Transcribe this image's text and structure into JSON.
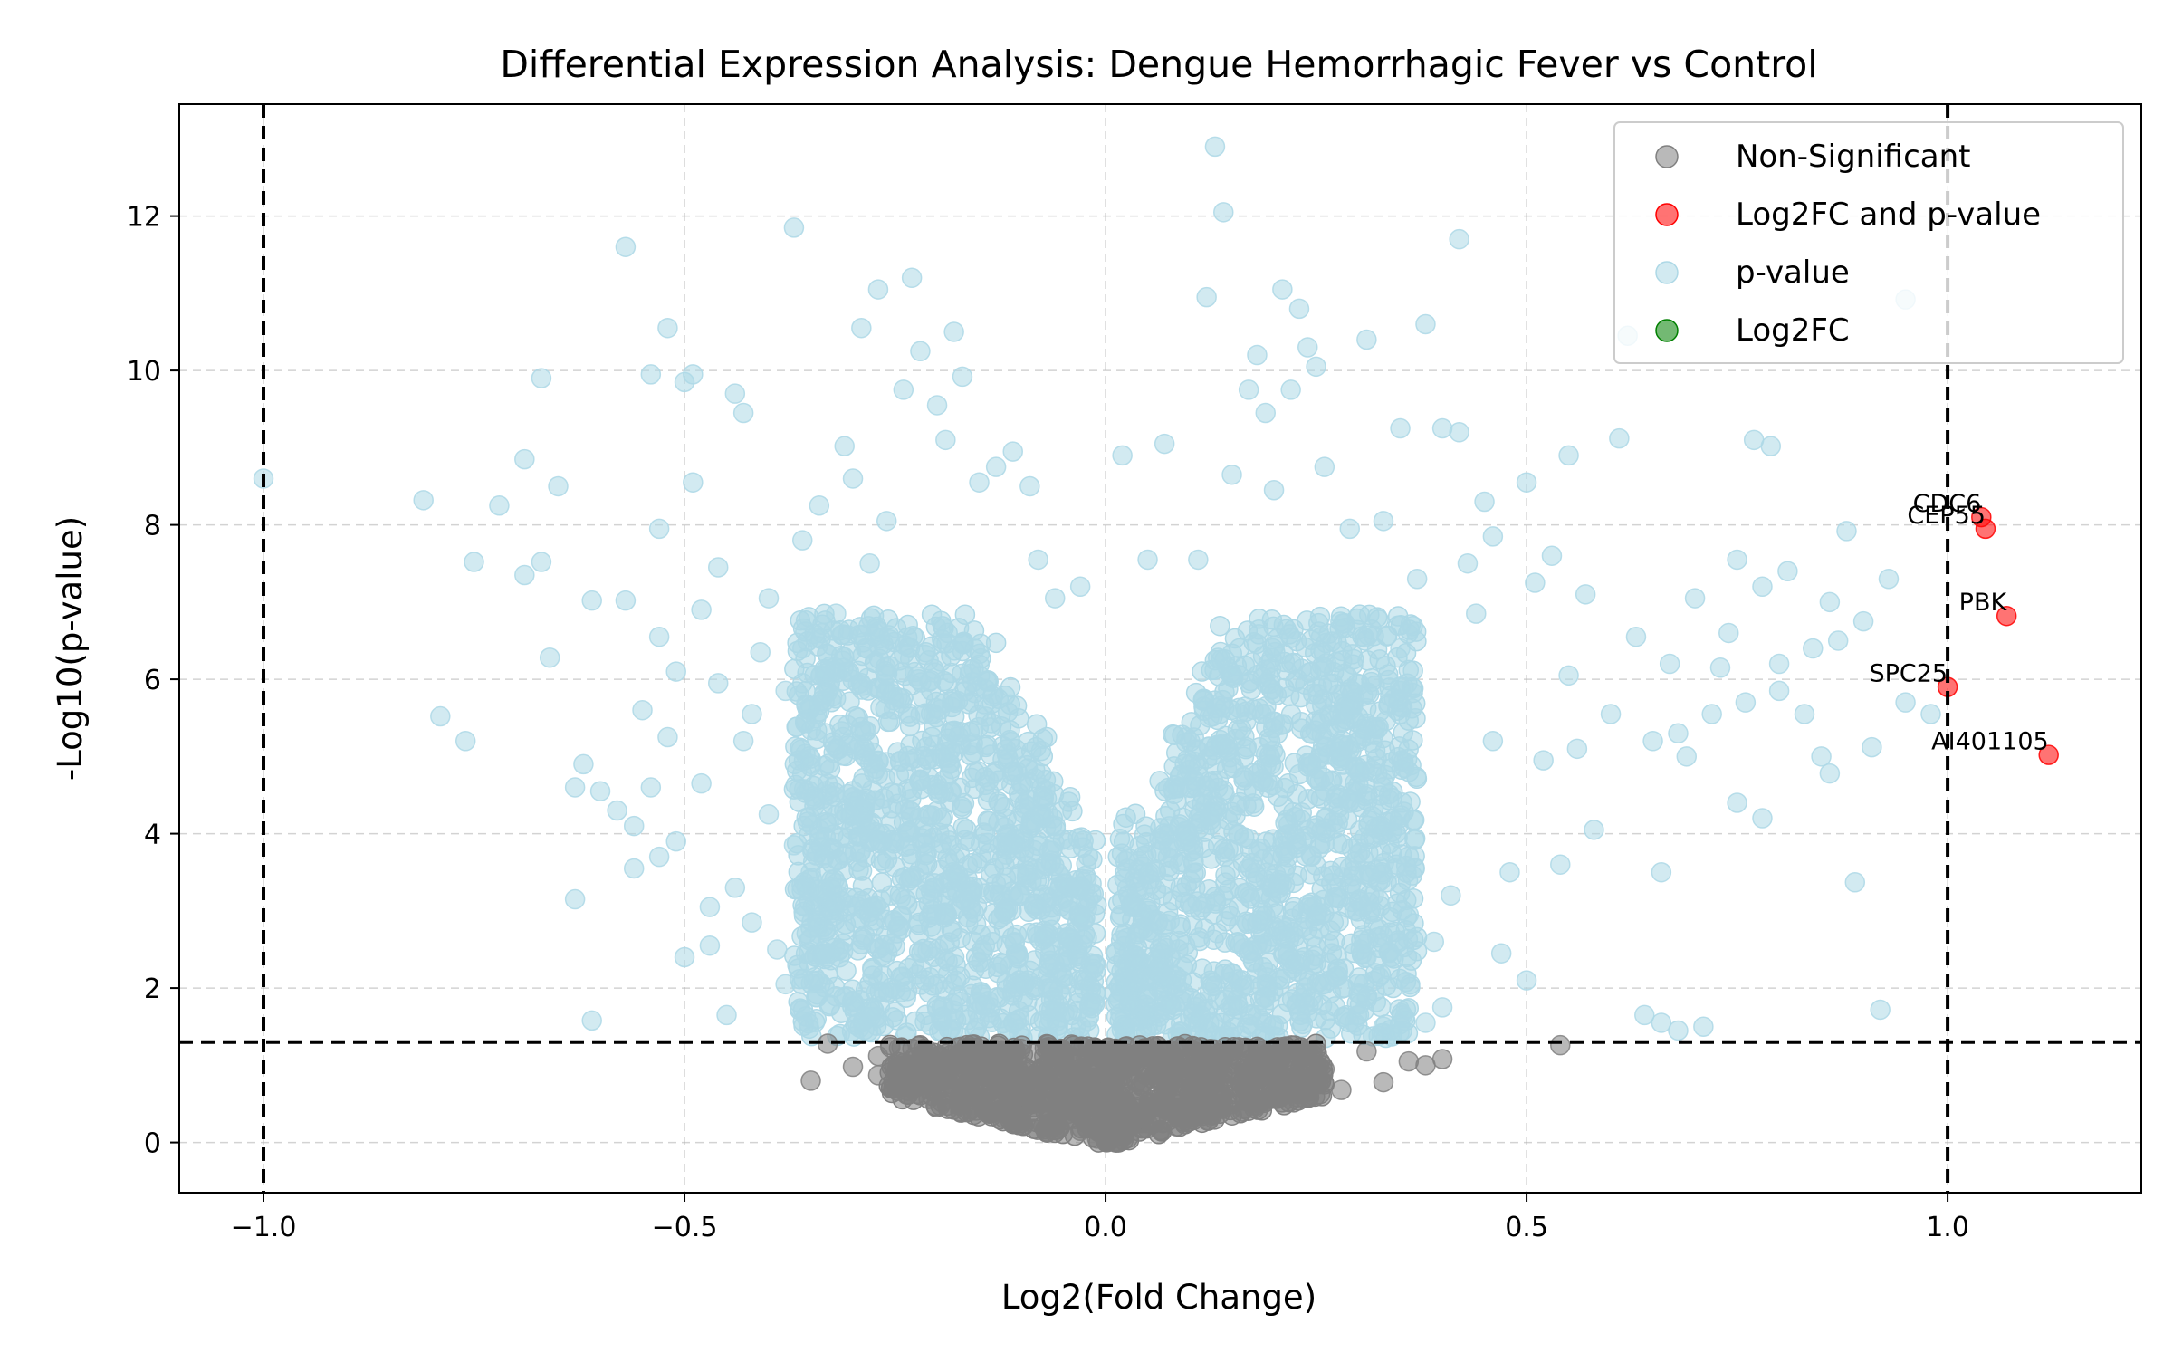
{
  "chart_data": {
    "type": "scatter",
    "title": "Differential Expression Analysis: Dengue Hemorrhagic Fever vs Control",
    "xlabel": "Log2(Fold Change)",
    "ylabel": "-Log10(p-value)",
    "xlim": [
      -1.1,
      1.23
    ],
    "ylim": [
      -0.65,
      13.45
    ],
    "x_ticks": [
      -1.0,
      -0.5,
      0.0,
      0.5,
      1.0
    ],
    "x_tick_labels": [
      "−1.0",
      "−0.5",
      "0.0",
      "0.5",
      "1.0"
    ],
    "y_ticks": [
      0,
      2,
      4,
      6,
      8,
      10,
      12
    ],
    "y_tick_labels": [
      "0",
      "2",
      "4",
      "6",
      "8",
      "10",
      "12"
    ],
    "grid": true,
    "legend_position": "top-right",
    "thresholds": {
      "log2fc": [
        -1.0,
        1.0
      ],
      "neg_log10_p": 1.3
    },
    "colors": {
      "non_significant": "#808080",
      "log2fc_and_pvalue": "#ff0000",
      "pvalue": "#add8e6",
      "log2fc": "#008000",
      "threshold_line": "#000000",
      "grid": "#b0b0b0"
    },
    "legend": [
      {
        "name": "Non-Significant",
        "color": "#808080"
      },
      {
        "name": "Log2FC and p-value",
        "color": "#ff0000"
      },
      {
        "name": "p-value",
        "color": "#add8e6"
      },
      {
        "name": "Log2FC",
        "color": "#008000"
      }
    ],
    "series": [
      {
        "name": "Non-Significant",
        "color": "#808080",
        "points": [
          [
            -0.33,
            1.28
          ],
          [
            -0.3,
            0.98
          ],
          [
            -0.27,
            0.87
          ],
          [
            -0.27,
            1.12
          ],
          [
            -0.24,
            0.95
          ],
          [
            -0.23,
            0.72
          ],
          [
            -0.22,
            1.05
          ],
          [
            -0.2,
            0.78
          ],
          [
            -0.18,
            0.62
          ],
          [
            -0.16,
            0.9
          ],
          [
            -0.15,
            0.55
          ],
          [
            -0.14,
            0.38
          ],
          [
            -0.12,
            0.7
          ],
          [
            -0.1,
            0.3
          ],
          [
            -0.09,
            0.52
          ],
          [
            -0.07,
            0.82
          ],
          [
            -0.06,
            0.22
          ],
          [
            -0.05,
            0.6
          ],
          [
            -0.03,
            0.15
          ],
          [
            -0.02,
            0.45
          ],
          [
            -0.01,
            0.05
          ],
          [
            0.0,
            0.68
          ],
          [
            0.01,
            0.12
          ],
          [
            0.03,
            0.4
          ],
          [
            0.05,
            0.25
          ],
          [
            0.06,
            0.88
          ],
          [
            0.08,
            0.52
          ],
          [
            0.1,
            0.35
          ],
          [
            0.12,
            0.75
          ],
          [
            0.14,
            0.48
          ],
          [
            0.15,
            1.02
          ],
          [
            0.17,
            0.62
          ],
          [
            0.19,
            0.85
          ],
          [
            0.21,
            0.7
          ],
          [
            0.23,
            1.1
          ],
          [
            0.24,
            0.8
          ],
          [
            0.26,
            0.95
          ],
          [
            0.28,
            0.68
          ],
          [
            0.31,
            1.18
          ],
          [
            0.33,
            0.78
          ],
          [
            0.36,
            1.05
          ],
          [
            0.4,
            1.08
          ],
          [
            0.54,
            1.26
          ],
          [
            -0.35,
            0.8
          ],
          [
            0.38,
            1.0
          ]
        ]
      },
      {
        "name": "Log2FC and p-value",
        "color": "#ff0000",
        "points": [
          [
            1.04,
            8.1
          ],
          [
            1.045,
            7.95
          ],
          [
            1.07,
            6.82
          ],
          [
            1.0,
            5.9
          ],
          [
            1.12,
            5.02
          ]
        ]
      },
      {
        "name": "p-value",
        "color": "#add8e6",
        "points": [
          [
            -1.0,
            8.6
          ],
          [
            -0.81,
            8.32
          ],
          [
            -0.79,
            5.52
          ],
          [
            -0.76,
            5.2
          ],
          [
            -0.75,
            7.52
          ],
          [
            -0.72,
            8.25
          ],
          [
            -0.69,
            8.85
          ],
          [
            -0.69,
            7.35
          ],
          [
            -0.67,
            7.52
          ],
          [
            -0.67,
            9.9
          ],
          [
            -0.66,
            6.28
          ],
          [
            -0.65,
            8.5
          ],
          [
            -0.63,
            3.15
          ],
          [
            -0.63,
            4.6
          ],
          [
            -0.62,
            4.9
          ],
          [
            -0.61,
            1.58
          ],
          [
            -0.61,
            7.02
          ],
          [
            -0.6,
            4.55
          ],
          [
            -0.58,
            4.3
          ],
          [
            -0.57,
            11.6
          ],
          [
            -0.57,
            7.02
          ],
          [
            -0.56,
            3.55
          ],
          [
            -0.56,
            4.1
          ],
          [
            -0.55,
            5.6
          ],
          [
            -0.54,
            9.95
          ],
          [
            -0.53,
            6.55
          ],
          [
            -0.53,
            7.95
          ],
          [
            -0.52,
            10.55
          ],
          [
            -0.51,
            3.9
          ],
          [
            -0.5,
            9.85
          ],
          [
            -0.49,
            8.55
          ],
          [
            -0.49,
            9.95
          ],
          [
            -0.48,
            6.9
          ],
          [
            -0.47,
            2.55
          ],
          [
            -0.46,
            7.45
          ],
          [
            -0.45,
            1.65
          ],
          [
            -0.44,
            9.7
          ],
          [
            -0.43,
            9.45
          ],
          [
            -0.43,
            5.2
          ],
          [
            -0.42,
            2.85
          ],
          [
            -0.4,
            7.05
          ],
          [
            -0.38,
            2.05
          ],
          [
            -0.37,
            11.85
          ],
          [
            -0.36,
            7.8
          ],
          [
            -0.35,
            3.5
          ],
          [
            -0.34,
            8.25
          ],
          [
            -0.32,
            6.85
          ],
          [
            -0.31,
            9.02
          ],
          [
            -0.3,
            8.6
          ],
          [
            -0.29,
            10.55
          ],
          [
            -0.28,
            7.5
          ],
          [
            -0.27,
            11.05
          ],
          [
            -0.26,
            8.05
          ],
          [
            -0.24,
            9.75
          ],
          [
            -0.23,
            11.2
          ],
          [
            -0.22,
            10.25
          ],
          [
            -0.2,
            9.55
          ],
          [
            -0.19,
            9.1
          ],
          [
            -0.18,
            10.5
          ],
          [
            -0.17,
            9.92
          ],
          [
            -0.15,
            8.55
          ],
          [
            -0.13,
            8.75
          ],
          [
            -0.11,
            8.95
          ],
          [
            -0.09,
            8.5
          ],
          [
            -0.08,
            7.55
          ],
          [
            -0.06,
            7.05
          ],
          [
            -0.03,
            7.2
          ],
          [
            0.02,
            8.9
          ],
          [
            0.05,
            7.55
          ],
          [
            0.07,
            9.05
          ],
          [
            0.11,
            7.55
          ],
          [
            0.12,
            10.95
          ],
          [
            0.13,
            12.9
          ],
          [
            0.14,
            12.05
          ],
          [
            0.15,
            8.65
          ],
          [
            0.17,
            9.75
          ],
          [
            0.18,
            10.2
          ],
          [
            0.19,
            9.45
          ],
          [
            0.2,
            8.45
          ],
          [
            0.21,
            11.05
          ],
          [
            0.22,
            9.75
          ],
          [
            0.23,
            10.8
          ],
          [
            0.24,
            10.3
          ],
          [
            0.25,
            10.05
          ],
          [
            0.26,
            8.75
          ],
          [
            0.29,
            7.95
          ],
          [
            0.31,
            10.4
          ],
          [
            0.33,
            8.05
          ],
          [
            0.35,
            9.25
          ],
          [
            0.37,
            7.3
          ],
          [
            0.38,
            10.6
          ],
          [
            0.4,
            9.25
          ],
          [
            0.42,
            9.2
          ],
          [
            0.42,
            11.7
          ],
          [
            0.43,
            7.5
          ],
          [
            0.45,
            8.3
          ],
          [
            0.46,
            7.85
          ],
          [
            0.5,
            8.55
          ],
          [
            0.51,
            7.25
          ],
          [
            0.53,
            7.6
          ],
          [
            0.55,
            8.9
          ],
          [
            0.55,
            6.05
          ],
          [
            0.57,
            7.1
          ],
          [
            0.61,
            9.12
          ],
          [
            0.62,
            10.45
          ],
          [
            0.63,
            6.55
          ],
          [
            0.64,
            1.65
          ],
          [
            0.65,
            5.2
          ],
          [
            0.66,
            1.55
          ],
          [
            0.66,
            3.5
          ],
          [
            0.67,
            6.2
          ],
          [
            0.68,
            1.45
          ],
          [
            0.69,
            5.0
          ],
          [
            0.7,
            7.05
          ],
          [
            0.71,
            1.5
          ],
          [
            0.72,
            5.55
          ],
          [
            0.74,
            6.6
          ],
          [
            0.75,
            7.55
          ],
          [
            0.75,
            4.4
          ],
          [
            0.76,
            5.7
          ],
          [
            0.77,
            9.1
          ],
          [
            0.78,
            7.2
          ],
          [
            0.78,
            4.2
          ],
          [
            0.79,
            9.02
          ],
          [
            0.8,
            6.2
          ],
          [
            0.81,
            7.4
          ],
          [
            0.83,
            5.55
          ],
          [
            0.84,
            6.4
          ],
          [
            0.85,
            5.0
          ],
          [
            0.86,
            4.78
          ],
          [
            0.87,
            6.5
          ],
          [
            0.88,
            7.92
          ],
          [
            0.89,
            3.37
          ],
          [
            0.9,
            6.75
          ],
          [
            0.91,
            5.12
          ],
          [
            0.92,
            1.72
          ],
          [
            0.93,
            7.3
          ],
          [
            0.95,
            10.92
          ],
          [
            0.95,
            5.7
          ],
          [
            0.98,
            5.55
          ],
          [
            0.86,
            7.0
          ],
          [
            0.8,
            5.85
          ],
          [
            0.73,
            6.15
          ],
          [
            0.68,
            5.3
          ],
          [
            0.6,
            5.55
          ],
          [
            0.58,
            4.05
          ],
          [
            0.56,
            5.1
          ],
          [
            0.54,
            3.6
          ],
          [
            0.52,
            4.95
          ],
          [
            0.5,
            2.1
          ],
          [
            0.48,
            3.5
          ],
          [
            0.47,
            2.45
          ],
          [
            0.46,
            5.2
          ],
          [
            0.44,
            6.85
          ],
          [
            0.41,
            3.2
          ],
          [
            0.4,
            1.75
          ],
          [
            0.39,
            2.6
          ],
          [
            0.38,
            1.55
          ],
          [
            0.36,
            2.95
          ],
          [
            0.35,
            6.4
          ],
          [
            0.33,
            1.5
          ],
          [
            0.31,
            2.4
          ],
          [
            -0.5,
            2.4
          ],
          [
            -0.48,
            4.65
          ],
          [
            -0.46,
            5.95
          ],
          [
            -0.44,
            3.3
          ],
          [
            -0.42,
            5.55
          ],
          [
            -0.41,
            6.35
          ],
          [
            -0.4,
            4.25
          ],
          [
            -0.39,
            2.5
          ],
          [
            -0.38,
            5.85
          ],
          [
            -0.37,
            3.85
          ],
          [
            -0.36,
            6.4
          ],
          [
            -0.35,
            4.9
          ],
          [
            -0.34,
            2.7
          ],
          [
            -0.52,
            5.25
          ],
          [
            -0.54,
            4.6
          ],
          [
            -0.53,
            3.7
          ],
          [
            -0.51,
            6.1
          ],
          [
            -0.47,
            3.05
          ]
        ]
      },
      {
        "name": "Log2FC",
        "color": "#008000",
        "points": []
      }
    ],
    "annotations": [
      {
        "text": "CDC6",
        "x": 1.04,
        "y": 8.1
      },
      {
        "text": "CEP55",
        "x": 1.045,
        "y": 7.95
      },
      {
        "text": "PBK",
        "x": 1.07,
        "y": 6.82
      },
      {
        "text": "SPC25",
        "x": 1.0,
        "y": 5.9
      },
      {
        "text": "AI401105",
        "x": 1.12,
        "y": 5.02
      }
    ]
  }
}
